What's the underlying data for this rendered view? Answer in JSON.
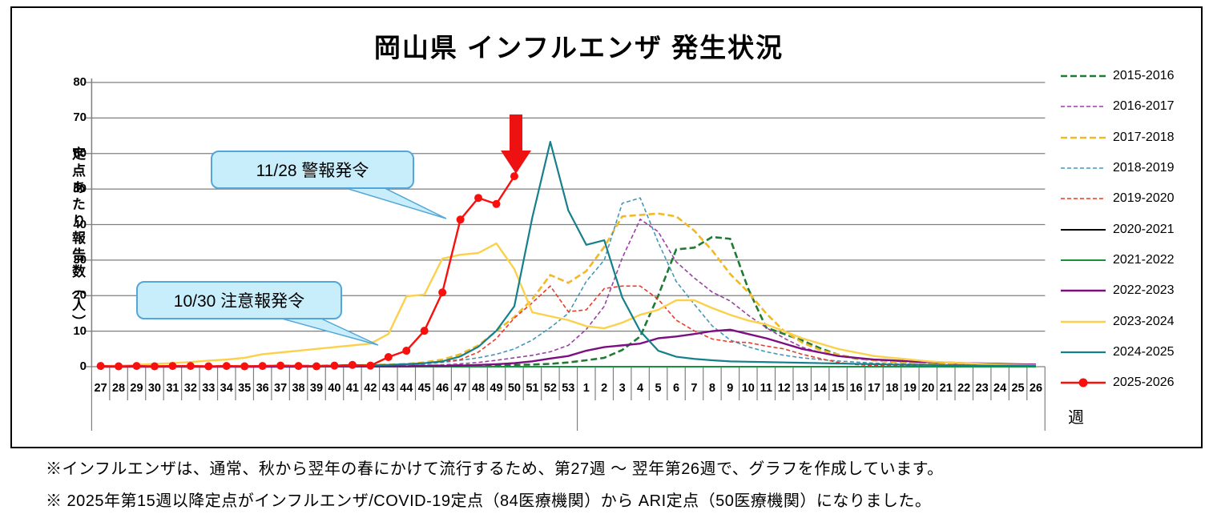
{
  "title": "岡山県 インフルエンザ 発生状況",
  "y_axis": {
    "title": "定点あたり報告数（人）",
    "ticks": [
      0,
      10,
      20,
      30,
      40,
      50,
      60,
      70,
      80
    ],
    "max": 80
  },
  "x_axis": {
    "unit_label": "週"
  },
  "annotations": {
    "alert": {
      "text": "11/28 警報発令"
    },
    "advisory": {
      "text": "10/30 注意報発令"
    },
    "arrow": {
      "meaning": "latest-week-marker",
      "color": "#ee1111"
    }
  },
  "footnotes": [
    "※インフルエンザは、通常、秋から翌年の春にかけて流行するため、第27週 ～ 翌年第26週で、グラフを作成しています。",
    "※ 2025年第15週以降定点がインフルエンザ/COVID-19定点（84医療機関）から ARI定点（50医療機関）になりました。"
  ],
  "colors": {
    "grid": "#7f7f7f",
    "axis": "#7f7f7f",
    "callout_fill": "#c8eefb",
    "callout_border": "#55a6d8",
    "frame": "#000000"
  },
  "chart_data": {
    "type": "line",
    "title": "岡山県 インフルエンザ 発生状況",
    "xlabel": "週",
    "ylabel": "定点あたり報告数（人）",
    "ylim": [
      0,
      80
    ],
    "grid": "horizontal",
    "legend_position": "right",
    "categories": [
      "27",
      "28",
      "29",
      "30",
      "31",
      "32",
      "33",
      "34",
      "35",
      "36",
      "37",
      "38",
      "39",
      "40",
      "41",
      "42",
      "43",
      "44",
      "45",
      "46",
      "47",
      "48",
      "49",
      "50",
      "51",
      "52",
      "53",
      "1",
      "2",
      "3",
      "4",
      "5",
      "6",
      "7",
      "8",
      "9",
      "10",
      "11",
      "12",
      "13",
      "14",
      "15",
      "16",
      "17",
      "18",
      "19",
      "20",
      "21",
      "22",
      "23",
      "24",
      "25",
      "26"
    ],
    "series": [
      {
        "name": "2015-2016",
        "color": "#1f7a33",
        "width": 2.6,
        "dash": "8 4",
        "marker": false,
        "values": [
          0.1,
          0.1,
          0.1,
          0.1,
          0.1,
          0.1,
          0.1,
          0.1,
          0.1,
          0.1,
          0.1,
          0.1,
          0.2,
          0.2,
          0.2,
          0.2,
          0.2,
          0.3,
          0.3,
          0.3,
          0.4,
          0.4,
          0.5,
          0.5,
          0.6,
          0.8,
          1.2,
          1.8,
          2.5,
          4.7,
          8.5,
          20,
          33,
          33.5,
          36.5,
          36,
          22,
          11,
          9.2,
          7.4,
          5.2,
          3.4,
          2.3,
          1.8,
          1.4,
          1.0,
          0.8,
          0.6,
          0.5,
          0.4,
          0.3,
          0.3,
          0.2
        ]
      },
      {
        "name": "2016-2017",
        "color": "#9b3fa8",
        "width": 1.6,
        "dash": "5 3",
        "marker": false,
        "values": [
          0.1,
          0.1,
          0.1,
          0.1,
          0.1,
          0.1,
          0.1,
          0.1,
          0.1,
          0.2,
          0.2,
          0.2,
          0.2,
          0.2,
          0.3,
          0.3,
          0.3,
          0.4,
          0.4,
          0.5,
          0.8,
          1.2,
          1.8,
          2.5,
          3.2,
          4.2,
          6.0,
          10.5,
          17,
          30.6,
          41.5,
          38,
          29.5,
          25,
          21,
          18.5,
          14.5,
          11,
          8,
          5.5,
          4,
          3,
          2.4,
          2,
          1.6,
          1.3,
          1.1,
          0.9,
          0.8,
          0.7,
          0.6,
          0.5,
          0.4
        ]
      },
      {
        "name": "2017-2018",
        "color": "#efb929",
        "width": 2.6,
        "dash": "8 4",
        "marker": false,
        "values": [
          0.1,
          0.1,
          0.1,
          0.1,
          0.1,
          0.2,
          0.2,
          0.2,
          0.2,
          0.2,
          0.3,
          0.3,
          0.3,
          0.4,
          0.4,
          0.5,
          0.6,
          0.8,
          1.2,
          2.0,
          3.5,
          6.0,
          10,
          14,
          19,
          25.8,
          23.6,
          26.9,
          33.7,
          42.3,
          42.7,
          43.1,
          42.3,
          38.3,
          32.7,
          26.1,
          21,
          15,
          10,
          6.8,
          4.7,
          3.4,
          2.4,
          1.8,
          1.3,
          1.0,
          0.8,
          0.6,
          0.5,
          0.4,
          0.3,
          0.3,
          0.2
        ]
      },
      {
        "name": "2018-2019",
        "color": "#4598b8",
        "width": 1.6,
        "dash": "5 3",
        "marker": false,
        "values": [
          0.1,
          0.1,
          0.1,
          0.1,
          0.1,
          0.1,
          0.1,
          0.1,
          0.1,
          0.1,
          0.2,
          0.2,
          0.2,
          0.2,
          0.3,
          0.3,
          0.4,
          0.5,
          0.8,
          1.2,
          1.8,
          2.5,
          3.5,
          5.0,
          7.5,
          11,
          15,
          24,
          30,
          46,
          47.5,
          35,
          24,
          17.6,
          11.5,
          7.5,
          5.6,
          4.2,
          3.2,
          2.5,
          2.0,
          1.6,
          1.3,
          1.0,
          0.8,
          0.7,
          0.6,
          0.5,
          0.4,
          0.3,
          0.3,
          0.2,
          0.2
        ]
      },
      {
        "name": "2019-2020",
        "color": "#ea3b28",
        "width": 1.6,
        "dash": "5 3",
        "marker": false,
        "values": [
          0.1,
          0.1,
          0.1,
          0.1,
          0.1,
          0.1,
          0.2,
          0.2,
          0.2,
          0.2,
          0.2,
          0.3,
          0.3,
          0.3,
          0.3,
          0.4,
          0.5,
          0.7,
          1.0,
          1.4,
          2.0,
          4.1,
          7.9,
          13.7,
          18,
          22.7,
          15.5,
          16,
          22,
          22.7,
          22.7,
          19,
          13.1,
          10.1,
          7.8,
          7.0,
          6.8,
          5.8,
          5.0,
          3.5,
          2.3,
          1.2,
          0.6,
          0.3,
          0.2,
          0.2,
          0.1,
          0.1,
          0.1,
          0.1,
          0.1,
          0.1,
          0.1
        ]
      },
      {
        "name": "2020-2021",
        "color": "#000000",
        "width": 2.0,
        "dash": null,
        "marker": false,
        "values": [
          0,
          0,
          0,
          0,
          0,
          0,
          0,
          0,
          0,
          0,
          0,
          0,
          0,
          0,
          0,
          0,
          0,
          0,
          0,
          0,
          0,
          0,
          0,
          0,
          0,
          0,
          0,
          0,
          0,
          0,
          0,
          0,
          0,
          0,
          0,
          0,
          0,
          0,
          0,
          0,
          0,
          0,
          0,
          0,
          0,
          0,
          0,
          0,
          0,
          0,
          0,
          0,
          0
        ]
      },
      {
        "name": "2021-2022",
        "color": "#15933c",
        "width": 2.0,
        "dash": null,
        "marker": false,
        "values": [
          0,
          0,
          0,
          0,
          0,
          0,
          0,
          0,
          0,
          0,
          0,
          0,
          0,
          0,
          0,
          0,
          0,
          0,
          0,
          0,
          0,
          0,
          0,
          0,
          0,
          0,
          0,
          0,
          0,
          0,
          0,
          0,
          0,
          0,
          0,
          0,
          0,
          0,
          0,
          0,
          0,
          0,
          0,
          0,
          0,
          0,
          0,
          0,
          0,
          0,
          0,
          0,
          0
        ]
      },
      {
        "name": "2022-2023",
        "color": "#7d0e82",
        "width": 2.4,
        "dash": null,
        "marker": false,
        "values": [
          0,
          0,
          0,
          0,
          0,
          0,
          0,
          0,
          0,
          0,
          0,
          0,
          0.1,
          0.1,
          0.1,
          0.1,
          0.1,
          0.1,
          0.2,
          0.2,
          0.3,
          0.5,
          0.7,
          1.0,
          1.5,
          2.3,
          3.0,
          4.5,
          5.5,
          6.0,
          6.5,
          8.0,
          8.5,
          9.2,
          10,
          10.4,
          9.2,
          8.0,
          6.5,
          5.0,
          4.0,
          3.0,
          2.5,
          2.0,
          1.8,
          1.5,
          1.3,
          1.2,
          1.0,
          0.9,
          0.8,
          0.7,
          0.6
        ]
      },
      {
        "name": "2023-2024",
        "color": "#fbd14c",
        "width": 2.4,
        "dash": null,
        "marker": false,
        "values": [
          0.2,
          0.3,
          0.5,
          0.8,
          1.0,
          1.3,
          1.7,
          2.0,
          2.5,
          3.5,
          4.0,
          4.5,
          5.0,
          5.5,
          6.0,
          6.5,
          9.2,
          19.8,
          20.3,
          30.4,
          31.5,
          32,
          34.7,
          27.5,
          15.3,
          14.2,
          13.1,
          11.4,
          10.8,
          12.4,
          14.6,
          16,
          18.7,
          18.7,
          16.5,
          14.6,
          13,
          11.9,
          10,
          8,
          6.5,
          5,
          4,
          3,
          2.5,
          2,
          1.5,
          1.2,
          1.0,
          0.8,
          0.6,
          0.5,
          0.4
        ]
      },
      {
        "name": "2024-2025",
        "color": "#15808b",
        "width": 2.2,
        "dash": null,
        "marker": false,
        "values": [
          0.1,
          0.1,
          0.1,
          0.1,
          0.1,
          0.1,
          0.1,
          0.1,
          0.1,
          0.2,
          0.2,
          0.2,
          0.2,
          0.3,
          0.3,
          0.4,
          0.5,
          0.7,
          1.0,
          1.5,
          2.9,
          5.6,
          10.1,
          17,
          42,
          63.3,
          44,
          34.3,
          35.6,
          19.5,
          10,
          4.5,
          2.8,
          2.2,
          1.8,
          1.5,
          1.4,
          1.3,
          1.2,
          1.1,
          1.0,
          0.9,
          0.8,
          0.7,
          0.6,
          0.5,
          0.5,
          0.4,
          0.4,
          0.3,
          0.3,
          0.3,
          0.3
        ]
      },
      {
        "name": "2025-2026",
        "color": "#f90f0c",
        "width": 2.4,
        "dash": null,
        "marker": true,
        "values": [
          0.2,
          0.1,
          0.2,
          0.1,
          0.2,
          0.2,
          0.1,
          0.2,
          0.1,
          0.2,
          0.3,
          0.2,
          0.1,
          0.3,
          0.5,
          0.3,
          2.7,
          4.5,
          10.1,
          20.9,
          41.4,
          47.5,
          45.8,
          53.6,
          null,
          null,
          null,
          null,
          null,
          null,
          null,
          null,
          null,
          null,
          null,
          null,
          null,
          null,
          null,
          null,
          null,
          null,
          null,
          null,
          null,
          null,
          null,
          null,
          null,
          null,
          null,
          null,
          null
        ]
      }
    ]
  }
}
